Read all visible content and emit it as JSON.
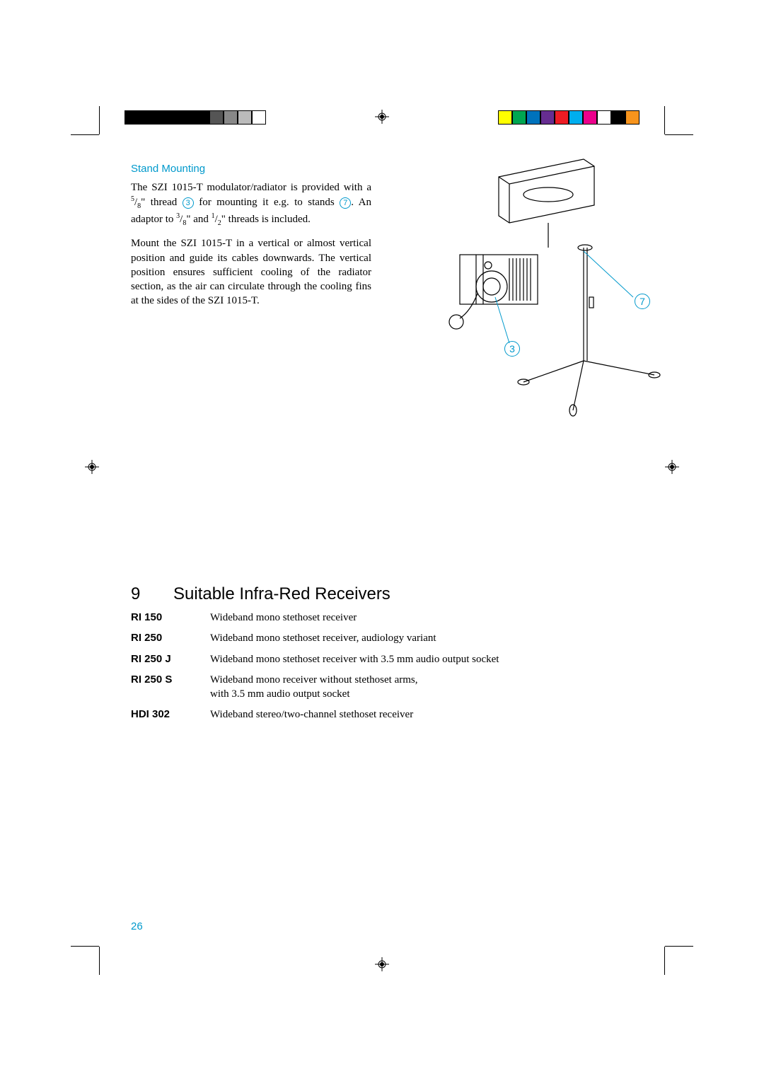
{
  "colorbar_left": [
    "#000000",
    "#000000",
    "#000000",
    "#000000",
    "#000000",
    "#000000",
    "#555555",
    "#888888",
    "#bbbbbb",
    "#ffffff"
  ],
  "colorbar_right": [
    "#ffff00",
    "#00a651",
    "#0072bc",
    "#662d91",
    "#ed1c24",
    "#00aeef",
    "#ec008c",
    "#ffffff",
    "#000000",
    "#f7941d"
  ],
  "subtitle": "Stand Mounting",
  "para1_a": "The SZI 1015-T modulator/radiator is provided with a ",
  "frac1_n": "5",
  "frac1_d": "8",
  "para1_b": "\" thread ",
  "ref3": "3",
  "para1_c": " for mounting it e.g. to stands ",
  "ref7": "7",
  "para1_d": ". An adaptor to  ",
  "frac2_n": "3",
  "frac2_d": "8",
  "para1_e": "\" and ",
  "frac3_n": "1",
  "frac3_d": "2",
  "para1_f": "\" threads is included.",
  "para2": "Mount the SZI 1015-T in a vertical or almost vertical position and guide its cables downwards. The vertical position ensures sufficient cooling of the radiator section, as the air can circulate through the cooling fins at the sides of the SZI 1015-T.",
  "section_num": "9",
  "section_title": "Suitable Infra-Red Receivers",
  "receivers": [
    {
      "label": "RI 150",
      "desc": "Wideband mono stethoset receiver"
    },
    {
      "label": "RI 250",
      "desc": "Wideband mono stethoset receiver, audiology variant"
    },
    {
      "label": "RI 250 J",
      "desc": "Wideband mono stethoset receiver with 3.5 mm audio output socket"
    },
    {
      "label": "RI 250 S",
      "desc": "Wideband mono receiver without stethoset arms,\nwith 3.5 mm audio output socket"
    },
    {
      "label": "HDI 302",
      "desc": "Wideband stereo/two-channel stethoset receiver"
    }
  ],
  "callout3": "3",
  "callout7": "7",
  "page_number": "26"
}
